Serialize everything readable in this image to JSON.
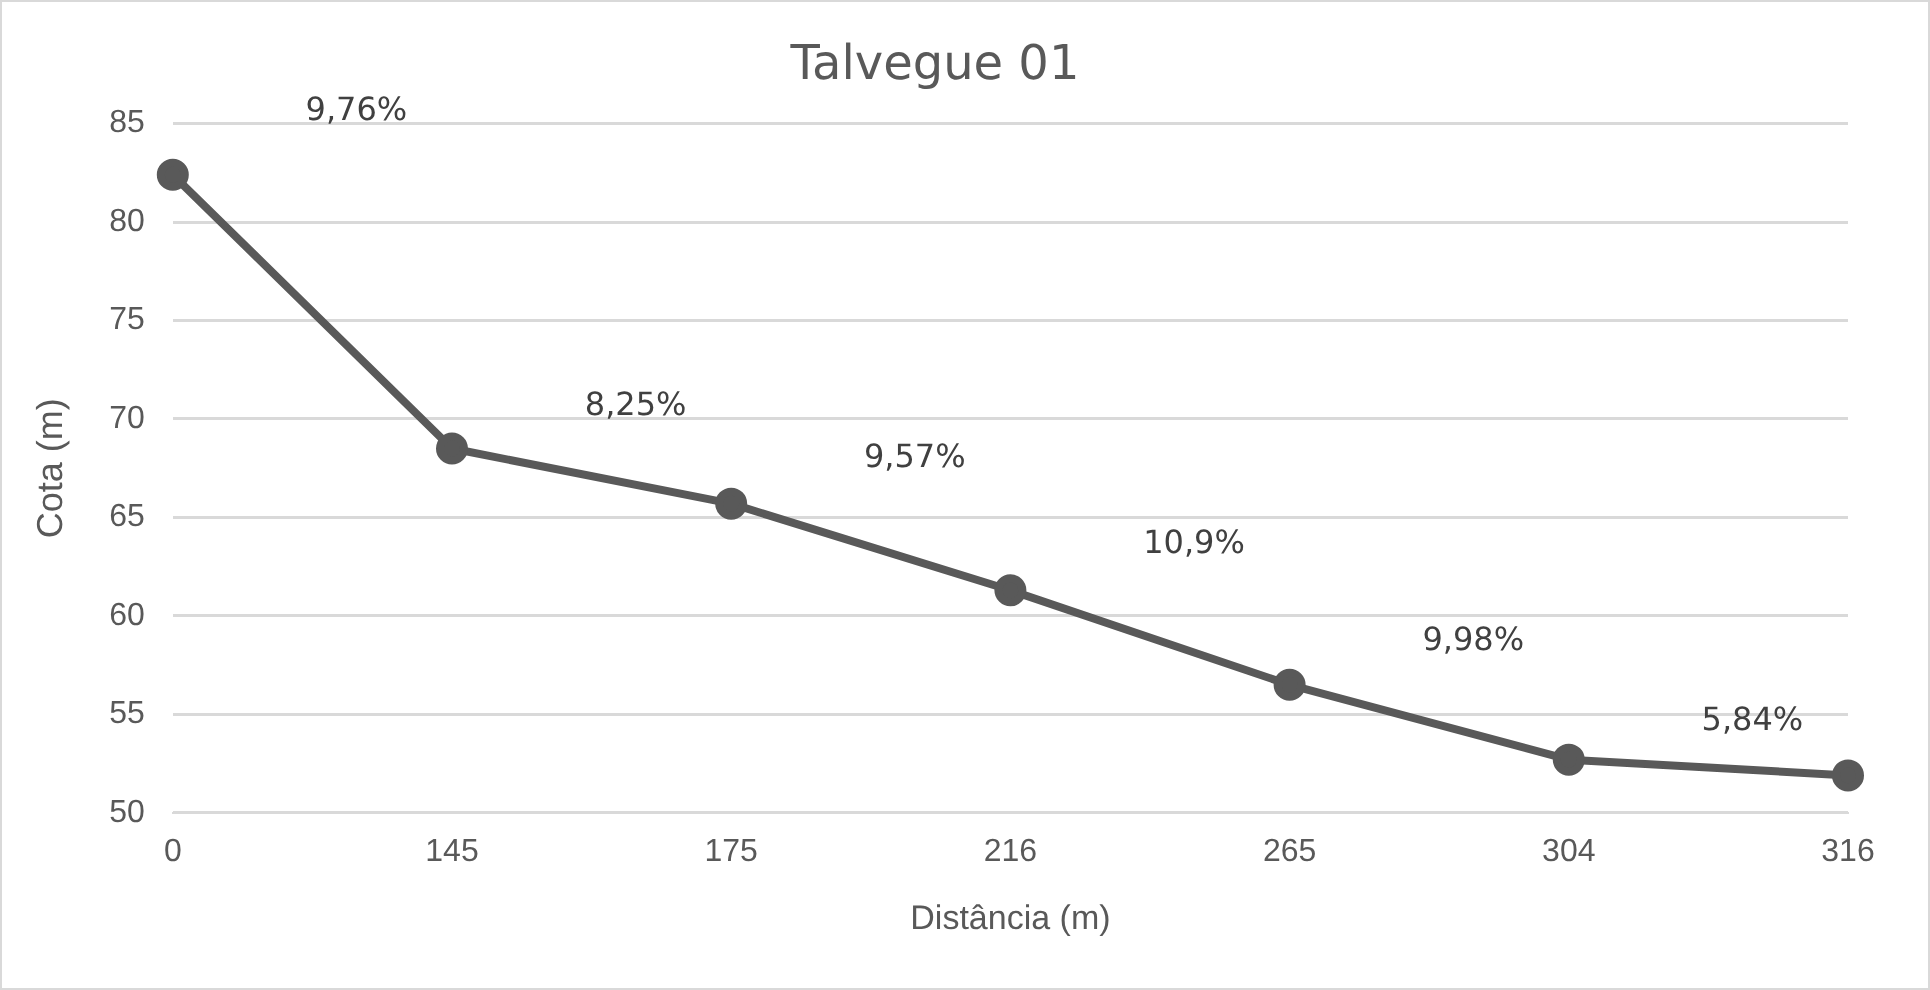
{
  "chart_data": {
    "type": "line",
    "title": "Talvegue 01",
    "xlabel": "Distância (m)",
    "ylabel": "Cota (m)",
    "categories": [
      "0",
      "145",
      "175",
      "216",
      "265",
      "304",
      "316"
    ],
    "series": [
      {
        "color": "#595959",
        "values": [
          82.4,
          68.5,
          65.7,
          61.3,
          56.5,
          52.7,
          51.9
        ]
      }
    ],
    "ylim": [
      50,
      85
    ],
    "yticks": [
      50,
      55,
      60,
      65,
      70,
      75,
      80,
      85
    ],
    "grid": "y",
    "legend": false,
    "marker": "circle",
    "line_style": "solid",
    "annotations": [
      "9,76%",
      "8,25%",
      "9,57%",
      "10,9%",
      "9,98%",
      "5,84%"
    ]
  }
}
